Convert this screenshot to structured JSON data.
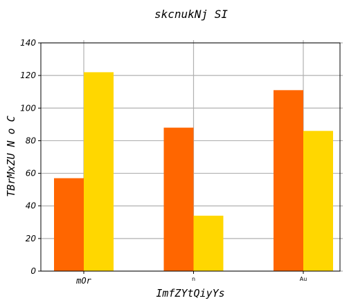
{
  "chart_data": {
    "type": "bar",
    "title": "skcnukNj SI",
    "xlabel": "ImfZYtQiyYs",
    "ylabel": "TBrMxZU N o C",
    "categories": [
      "mOr",
      "n",
      "Au"
    ],
    "series": [
      {
        "color": "#ff6600",
        "values": [
          57,
          88,
          111
        ]
      },
      {
        "color": "#ffd700",
        "values": [
          122,
          34,
          86
        ]
      }
    ],
    "ylim": [
      0,
      140
    ],
    "yticks": [
      0,
      20,
      40,
      60,
      80,
      100,
      120,
      140
    ],
    "grid": true
  }
}
